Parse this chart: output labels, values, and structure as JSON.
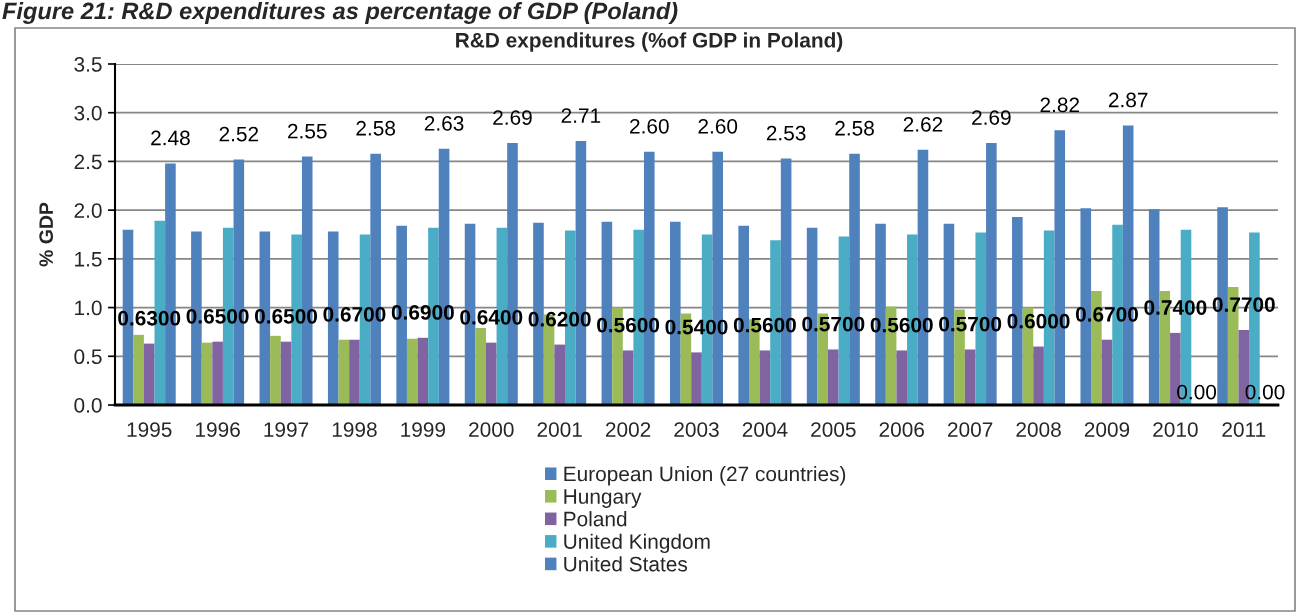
{
  "chart_data": {
    "type": "bar",
    "title": "Figure 21: R&D expenditures as percentage of GDP (Poland)",
    "subtitle": "R&D expenditures (%of GDP in Poland)",
    "ylabel": "% GDP",
    "categories": [
      "1995",
      "1996",
      "1997",
      "1998",
      "1999",
      "2000",
      "2001",
      "2002",
      "2003",
      "2004",
      "2005",
      "2006",
      "2007",
      "2008",
      "2009",
      "2010",
      "2011"
    ],
    "series": [
      {
        "name": "European Union (27 countries)",
        "color": "#4f81bd",
        "values": [
          1.8,
          1.78,
          1.78,
          1.78,
          1.84,
          1.86,
          1.87,
          1.88,
          1.88,
          1.84,
          1.82,
          1.86,
          1.86,
          1.93,
          2.02,
          2.01,
          2.03
        ]
      },
      {
        "name": "Hungary",
        "color": "#9bbb59",
        "values": [
          0.72,
          0.64,
          0.71,
          0.67,
          0.68,
          0.79,
          0.93,
          1.0,
          0.94,
          0.88,
          0.94,
          1.01,
          0.98,
          1.0,
          1.17,
          1.17,
          1.21
        ]
      },
      {
        "name": "Poland",
        "color": "#8064a2",
        "values": [
          0.63,
          0.65,
          0.65,
          0.67,
          0.69,
          0.64,
          0.62,
          0.56,
          0.54,
          0.56,
          0.57,
          0.56,
          0.57,
          0.6,
          0.67,
          0.74,
          0.77
        ],
        "value_labels": [
          "0.6300",
          "0.6500",
          "0.6500",
          "0.6700",
          "0.6900",
          "0.6400",
          "0.6200",
          "0.5600",
          "0.5400",
          "0.5600",
          "0.5700",
          "0.5600",
          "0.5700",
          "0.6000",
          "0.6700",
          "0.7400",
          "0.7700"
        ]
      },
      {
        "name": "United Kingdom",
        "color": "#4bacc6",
        "values": [
          1.89,
          1.82,
          1.75,
          1.75,
          1.82,
          1.82,
          1.79,
          1.8,
          1.75,
          1.69,
          1.73,
          1.75,
          1.77,
          1.79,
          1.85,
          1.8,
          1.77
        ]
      },
      {
        "name": "United States",
        "color": "#4f81bd",
        "values": [
          2.48,
          2.52,
          2.55,
          2.58,
          2.63,
          2.69,
          2.71,
          2.6,
          2.6,
          2.53,
          2.58,
          2.62,
          2.69,
          2.82,
          2.87,
          0,
          0
        ],
        "value_labels": [
          "2.48",
          "2.52",
          "2.55",
          "2.58",
          "2.63",
          "2.69",
          "2.71",
          "2.60",
          "2.60",
          "2.53",
          "2.58",
          "2.62",
          "2.69",
          "2.82",
          "2.87",
          "0.00",
          "0.00"
        ]
      }
    ],
    "ylim": [
      0,
      3.5
    ],
    "yticks": [
      {
        "value": 0,
        "label": "0.0"
      },
      0.5,
      {
        "value": 1,
        "label": "1.0"
      },
      1.5,
      {
        "value": 2,
        "label": "2.0"
      },
      2.5,
      {
        "value": 3,
        "label": "3.0"
      },
      3.5
    ],
    "grid": "y",
    "legend": "bottom"
  }
}
